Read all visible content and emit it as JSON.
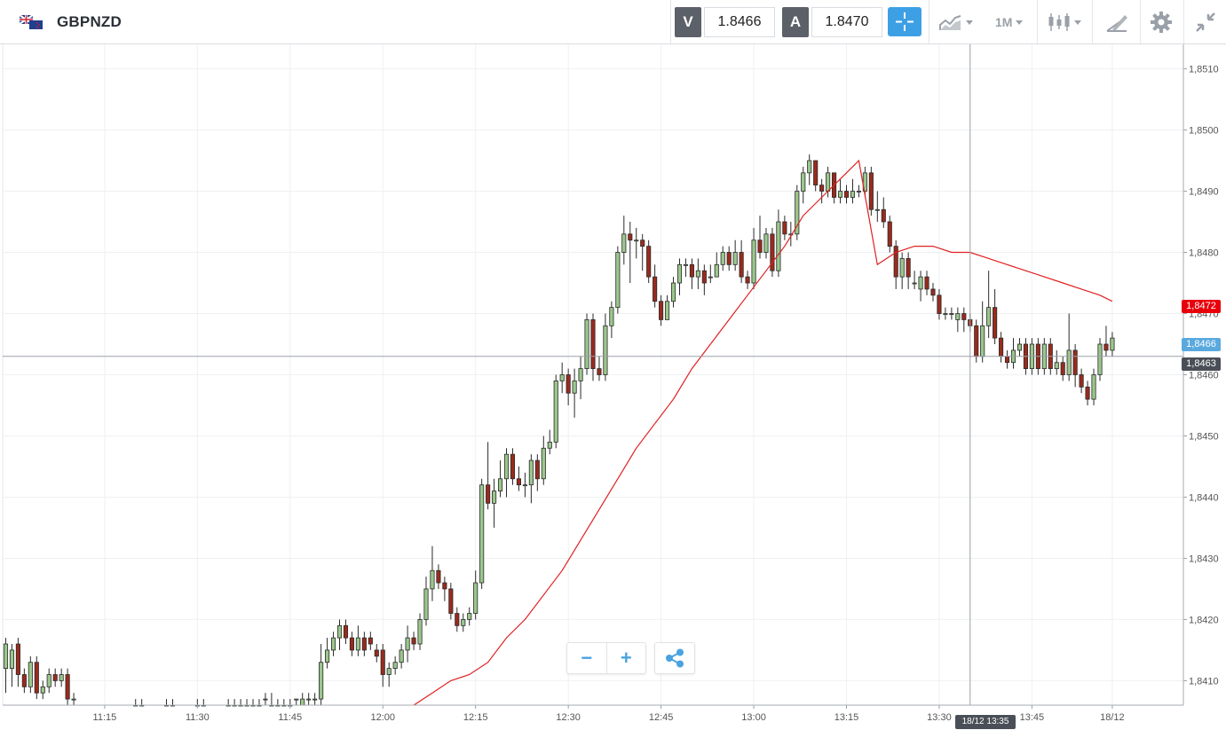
{
  "header": {
    "symbol": "GBPNZD",
    "sell_label": "V",
    "sell_price": "1.8466",
    "buy_label": "A",
    "buy_price": "1.8470",
    "timeframe": "1M"
  },
  "icons": [
    "uk-nz-flag-icon",
    "crosshair-icon",
    "chart-type-icon",
    "candlestick-icon",
    "drawing-tool-icon",
    "gear-icon",
    "collapse-icon",
    "minus-icon",
    "plus-icon",
    "share-icon"
  ],
  "tags": {
    "ma_price": "1,8472",
    "bid_price": "1,8466",
    "cursor_price": "1,8463",
    "cursor_time": "18/12 13:35"
  },
  "colors": {
    "accent": "#3ea0e4",
    "bull": "#9bc78c",
    "bear": "#9a2a1d",
    "ma": "#e02020",
    "ma_tag": "#e8000b",
    "bid_tag": "#5aa9de"
  },
  "chart_data": {
    "type": "candlestick",
    "y_ticks": [
      "1,8410",
      "1,8420",
      "1,8430",
      "1,8440",
      "1,8450",
      "1,8460",
      "1,8470",
      "1,8480",
      "1,8490",
      "1,8500",
      "1,8510"
    ],
    "y_tick_values": [
      1.841,
      1.842,
      1.843,
      1.844,
      1.845,
      1.846,
      1.847,
      1.848,
      1.849,
      1.85,
      1.851
    ],
    "ylim": [
      1.8406,
      1.8514
    ],
    "x_ticks": [
      "11:15",
      "11:30",
      "11:45",
      "12:00",
      "12:15",
      "12:30",
      "12:45",
      "13:00",
      "13:15",
      "13:30",
      "13:45",
      "18/12"
    ],
    "x_tick_minutes": [
      675,
      690,
      705,
      720,
      735,
      750,
      765,
      780,
      795,
      810,
      825,
      838
    ],
    "xlim": [
      658.5,
      849.5
    ],
    "cursor": {
      "minute": 815,
      "price": 1.8463
    },
    "candles": [
      [
        659,
        1.8412,
        1.8416,
        1.8417,
        1.8408
      ],
      [
        660,
        1.8412,
        1.8415,
        1.8416,
        1.8409
      ],
      [
        661,
        1.8416,
        1.8411,
        1.8417,
        1.8409
      ],
      [
        662,
        1.8411,
        1.8409,
        1.8412,
        1.8408
      ],
      [
        663,
        1.8409,
        1.8413,
        1.8414,
        1.8408
      ],
      [
        664,
        1.8413,
        1.8408,
        1.8414,
        1.8407
      ],
      [
        665,
        1.8408,
        1.8409,
        1.841,
        1.8407
      ],
      [
        666,
        1.8409,
        1.8411,
        1.8412,
        1.8408
      ],
      [
        667,
        1.8411,
        1.841,
        1.8412,
        1.8409
      ],
      [
        668,
        1.841,
        1.8411,
        1.8412,
        1.8409
      ],
      [
        669,
        1.8411,
        1.8407,
        1.8412,
        1.8406
      ],
      [
        670,
        1.8407,
        1.8407,
        1.8408,
        1.8406
      ],
      [
        680,
        1.8406,
        1.8406,
        1.8407,
        1.8406
      ],
      [
        681,
        1.8406,
        1.8406,
        1.8407,
        1.8406
      ],
      [
        685,
        1.8406,
        1.8406,
        1.8407,
        1.8406
      ],
      [
        686,
        1.8406,
        1.8406,
        1.8407,
        1.8406
      ],
      [
        690,
        1.8406,
        1.8406,
        1.8407,
        1.8406
      ],
      [
        691,
        1.8406,
        1.8406,
        1.8407,
        1.8406
      ],
      [
        695,
        1.8406,
        1.8406,
        1.8407,
        1.8406
      ],
      [
        696,
        1.8406,
        1.8406,
        1.8407,
        1.8406
      ],
      [
        697,
        1.8406,
        1.8406,
        1.8407,
        1.8406
      ],
      [
        698,
        1.8406,
        1.8406,
        1.8407,
        1.8406
      ],
      [
        699,
        1.8406,
        1.8406,
        1.8407,
        1.8406
      ],
      [
        700,
        1.8406,
        1.8406,
        1.8407,
        1.8406
      ],
      [
        701,
        1.8407,
        1.8407,
        1.8408,
        1.8406
      ],
      [
        702,
        1.8406,
        1.8406,
        1.8408,
        1.8406
      ],
      [
        703,
        1.8406,
        1.8406,
        1.8407,
        1.8406
      ],
      [
        704,
        1.8406,
        1.8406,
        1.8407,
        1.8406
      ],
      [
        705,
        1.8406,
        1.8406,
        1.8407,
        1.8406
      ],
      [
        706,
        1.8407,
        1.8407,
        1.8407,
        1.8406
      ],
      [
        707,
        1.8406,
        1.8407,
        1.8408,
        1.8406
      ],
      [
        708,
        1.8407,
        1.8407,
        1.8408,
        1.8406
      ],
      [
        709,
        1.8407,
        1.8407,
        1.8408,
        1.8406
      ],
      [
        710,
        1.8407,
        1.8413,
        1.8416,
        1.8406
      ],
      [
        711,
        1.8413,
        1.8415,
        1.8417,
        1.8412
      ],
      [
        712,
        1.8415,
        1.8417,
        1.8418,
        1.8414
      ],
      [
        713,
        1.8417,
        1.8419,
        1.842,
        1.8415
      ],
      [
        714,
        1.8419,
        1.8417,
        1.842,
        1.8416
      ],
      [
        715,
        1.8417,
        1.8415,
        1.8418,
        1.8414
      ],
      [
        716,
        1.8415,
        1.8417,
        1.8419,
        1.8414
      ],
      [
        717,
        1.8417,
        1.8415,
        1.8418,
        1.8414
      ],
      [
        718,
        1.8417,
        1.8416,
        1.8418,
        1.8415
      ],
      [
        719,
        1.8415,
        1.8414,
        1.8416,
        1.8413
      ],
      [
        720,
        1.8415,
        1.8411,
        1.8416,
        1.8409
      ],
      [
        721,
        1.8411,
        1.8412,
        1.8413,
        1.8409
      ],
      [
        722,
        1.8412,
        1.8413,
        1.8414,
        1.8411
      ],
      [
        723,
        1.8413,
        1.8415,
        1.8416,
        1.8412
      ],
      [
        724,
        1.8415,
        1.8417,
        1.8419,
        1.8413
      ],
      [
        725,
        1.8417,
        1.8416,
        1.8418,
        1.8415
      ],
      [
        726,
        1.8416,
        1.842,
        1.8421,
        1.8415
      ],
      [
        727,
        1.842,
        1.8425,
        1.8427,
        1.8419
      ],
      [
        728,
        1.8425,
        1.8428,
        1.8432,
        1.8423
      ],
      [
        729,
        1.8428,
        1.8426,
        1.8429,
        1.8425
      ],
      [
        730,
        1.8426,
        1.8425,
        1.8427,
        1.8423
      ],
      [
        731,
        1.8425,
        1.8421,
        1.8426,
        1.842
      ],
      [
        732,
        1.8421,
        1.8419,
        1.8422,
        1.8418
      ],
      [
        733,
        1.8419,
        1.842,
        1.8421,
        1.8418
      ],
      [
        734,
        1.842,
        1.8421,
        1.8422,
        1.8419
      ],
      [
        735,
        1.8421,
        1.8426,
        1.8428,
        1.842
      ],
      [
        736,
        1.8426,
        1.8442,
        1.8443,
        1.8425
      ],
      [
        737,
        1.8442,
        1.8439,
        1.8449,
        1.8438
      ],
      [
        738,
        1.8439,
        1.8441,
        1.8443,
        1.8435
      ],
      [
        739,
        1.8441,
        1.8443,
        1.8446,
        1.844
      ],
      [
        740,
        1.8443,
        1.8447,
        1.8448,
        1.844
      ],
      [
        741,
        1.8447,
        1.8443,
        1.8448,
        1.8442
      ],
      [
        742,
        1.8443,
        1.8442,
        1.8445,
        1.8441
      ],
      [
        743,
        1.8442,
        1.8442,
        1.8444,
        1.844
      ],
      [
        744,
        1.8442,
        1.8446,
        1.8447,
        1.8439
      ],
      [
        745,
        1.8446,
        1.8443,
        1.8447,
        1.8441
      ],
      [
        746,
        1.8443,
        1.8448,
        1.845,
        1.8442
      ],
      [
        747,
        1.8448,
        1.8449,
        1.8451,
        1.8447
      ],
      [
        748,
        1.8449,
        1.8459,
        1.846,
        1.8448
      ],
      [
        749,
        1.8459,
        1.846,
        1.8462,
        1.8457
      ],
      [
        750,
        1.846,
        1.8457,
        1.8461,
        1.8455
      ],
      [
        751,
        1.8457,
        1.8459,
        1.8461,
        1.8453
      ],
      [
        752,
        1.8459,
        1.8461,
        1.8463,
        1.8456
      ],
      [
        753,
        1.8461,
        1.8469,
        1.847,
        1.846
      ],
      [
        754,
        1.8469,
        1.8461,
        1.847,
        1.8459
      ],
      [
        755,
        1.8461,
        1.846,
        1.8463,
        1.8459
      ],
      [
        756,
        1.846,
        1.8468,
        1.847,
        1.8459
      ],
      [
        757,
        1.8468,
        1.8471,
        1.8472,
        1.8466
      ],
      [
        758,
        1.8471,
        1.848,
        1.8481,
        1.847
      ],
      [
        759,
        1.848,
        1.8483,
        1.8486,
        1.8478
      ],
      [
        760,
        1.8483,
        1.8482,
        1.8485,
        1.8475
      ],
      [
        761,
        1.8482,
        1.8482,
        1.8484,
        1.8479
      ],
      [
        762,
        1.8482,
        1.8481,
        1.8483,
        1.8477
      ],
      [
        763,
        1.8481,
        1.8476,
        1.8482,
        1.8475
      ],
      [
        764,
        1.8476,
        1.8472,
        1.8478,
        1.8471
      ],
      [
        765,
        1.8472,
        1.8469,
        1.8473,
        1.8468
      ],
      [
        766,
        1.8469,
        1.8472,
        1.8473,
        1.8469
      ],
      [
        767,
        1.8472,
        1.8475,
        1.8476,
        1.8471
      ],
      [
        768,
        1.8475,
        1.8478,
        1.8479,
        1.8473
      ],
      [
        769,
        1.8478,
        1.8478,
        1.8479,
        1.8476
      ],
      [
        770,
        1.8478,
        1.8476,
        1.8479,
        1.8474
      ],
      [
        771,
        1.8476,
        1.8477,
        1.8479,
        1.8474
      ],
      [
        772,
        1.8477,
        1.8475,
        1.8478,
        1.8473
      ],
      [
        773,
        1.8476,
        1.8476,
        1.8478,
        1.8475
      ],
      [
        774,
        1.8476,
        1.8478,
        1.848,
        1.8476
      ],
      [
        775,
        1.8478,
        1.848,
        1.8481,
        1.8477
      ],
      [
        776,
        1.848,
        1.8478,
        1.8481,
        1.8477
      ],
      [
        777,
        1.8478,
        1.848,
        1.8482,
        1.8477
      ],
      [
        778,
        1.848,
        1.8476,
        1.8482,
        1.8475
      ],
      [
        779,
        1.8476,
        1.8475,
        1.8477,
        1.8474
      ],
      [
        780,
        1.8475,
        1.8482,
        1.8484,
        1.8474
      ],
      [
        781,
        1.8482,
        1.848,
        1.8486,
        1.8479
      ],
      [
        782,
        1.848,
        1.8483,
        1.8484,
        1.8479
      ],
      [
        783,
        1.8483,
        1.8477,
        1.8484,
        1.8476
      ],
      [
        784,
        1.8477,
        1.8485,
        1.8487,
        1.8476
      ],
      [
        785,
        1.8485,
        1.8483,
        1.8486,
        1.8482
      ],
      [
        786,
        1.8483,
        1.8483,
        1.8485,
        1.8481
      ],
      [
        787,
        1.8483,
        1.849,
        1.8491,
        1.8482
      ],
      [
        788,
        1.849,
        1.8493,
        1.8494,
        1.8488
      ],
      [
        789,
        1.8493,
        1.8495,
        1.8496,
        1.8491
      ],
      [
        790,
        1.8495,
        1.8491,
        1.8495,
        1.849
      ],
      [
        791,
        1.8491,
        1.849,
        1.8492,
        1.8488
      ],
      [
        792,
        1.849,
        1.8493,
        1.8494,
        1.8489
      ],
      [
        793,
        1.8493,
        1.8489,
        1.8493,
        1.8488
      ],
      [
        794,
        1.8489,
        1.849,
        1.8492,
        1.8488
      ],
      [
        795,
        1.849,
        1.8489,
        1.8491,
        1.8488
      ],
      [
        796,
        1.8489,
        1.849,
        1.8492,
        1.8488
      ],
      [
        797,
        1.849,
        1.849,
        1.8491,
        1.8489
      ],
      [
        798,
        1.849,
        1.8493,
        1.8494,
        1.8489
      ],
      [
        799,
        1.8493,
        1.8487,
        1.8494,
        1.8486
      ],
      [
        800,
        1.8487,
        1.8487,
        1.849,
        1.8485
      ],
      [
        801,
        1.8487,
        1.8485,
        1.8489,
        1.8484
      ],
      [
        802,
        1.8485,
        1.8481,
        1.8486,
        1.848
      ],
      [
        803,
        1.8481,
        1.8476,
        1.8482,
        1.8474
      ],
      [
        804,
        1.8476,
        1.8479,
        1.848,
        1.8474
      ],
      [
        805,
        1.8479,
        1.8476,
        1.848,
        1.8474
      ],
      [
        806,
        1.8475,
        1.8475,
        1.8477,
        1.8474
      ],
      [
        807,
        1.8474,
        1.8476,
        1.8477,
        1.8472
      ],
      [
        808,
        1.8476,
        1.8474,
        1.8477,
        1.8473
      ],
      [
        809,
        1.8474,
        1.8473,
        1.8475,
        1.8472
      ],
      [
        810,
        1.8473,
        1.847,
        1.8474,
        1.8469
      ],
      [
        811,
        1.847,
        1.847,
        1.8471,
        1.8469
      ],
      [
        812,
        1.847,
        1.847,
        1.8471,
        1.8469
      ],
      [
        813,
        1.8469,
        1.847,
        1.8471,
        1.8467
      ],
      [
        814,
        1.847,
        1.8469,
        1.8471,
        1.8467
      ],
      [
        815,
        1.8469,
        1.8468,
        1.847,
        1.8467
      ],
      [
        816,
        1.8468,
        1.8463,
        1.8469,
        1.8462
      ],
      [
        817,
        1.8463,
        1.8468,
        1.8472,
        1.8462
      ],
      [
        818,
        1.8468,
        1.8471,
        1.8477,
        1.8466
      ],
      [
        819,
        1.8471,
        1.8466,
        1.8474,
        1.8465
      ],
      [
        820,
        1.8466,
        1.8463,
        1.8467,
        1.8462
      ],
      [
        821,
        1.8463,
        1.8462,
        1.8464,
        1.8461
      ],
      [
        822,
        1.8462,
        1.8464,
        1.8466,
        1.8461
      ],
      [
        823,
        1.8464,
        1.8465,
        1.8466,
        1.8463
      ],
      [
        824,
        1.8465,
        1.8461,
        1.8466,
        1.846
      ],
      [
        825,
        1.8461,
        1.8465,
        1.8466,
        1.846
      ],
      [
        826,
        1.8465,
        1.8461,
        1.8466,
        1.846
      ],
      [
        827,
        1.8461,
        1.8465,
        1.8466,
        1.846
      ],
      [
        828,
        1.8465,
        1.8461,
        1.8466,
        1.846
      ],
      [
        829,
        1.8461,
        1.8462,
        1.8464,
        1.846
      ],
      [
        830,
        1.8462,
        1.846,
        1.8463,
        1.8459
      ],
      [
        831,
        1.846,
        1.8464,
        1.847,
        1.8459
      ],
      [
        832,
        1.8464,
        1.846,
        1.8465,
        1.8458
      ],
      [
        833,
        1.846,
        1.8458,
        1.8461,
        1.8457
      ],
      [
        834,
        1.8458,
        1.8456,
        1.8459,
        1.8455
      ],
      [
        835,
        1.8456,
        1.846,
        1.8461,
        1.8455
      ],
      [
        836,
        1.846,
        1.8465,
        1.8466,
        1.8459
      ],
      [
        837,
        1.8465,
        1.8464,
        1.8468,
        1.8463
      ],
      [
        838,
        1.8464,
        1.8466,
        1.8467,
        1.8463
      ]
    ],
    "ma": [
      [
        725,
        1.8406
      ],
      [
        728,
        1.8408
      ],
      [
        731,
        1.841
      ],
      [
        734,
        1.8411
      ],
      [
        737,
        1.8413
      ],
      [
        740,
        1.8417
      ],
      [
        743,
        1.842
      ],
      [
        746,
        1.8424
      ],
      [
        749,
        1.8428
      ],
      [
        752,
        1.8433
      ],
      [
        755,
        1.8438
      ],
      [
        758,
        1.8443
      ],
      [
        761,
        1.8448
      ],
      [
        764,
        1.8452
      ],
      [
        767,
        1.8456
      ],
      [
        770,
        1.8461
      ],
      [
        773,
        1.8465
      ],
      [
        776,
        1.8469
      ],
      [
        779,
        1.8473
      ],
      [
        782,
        1.8477
      ],
      [
        785,
        1.8481
      ],
      [
        788,
        1.8486
      ],
      [
        791,
        1.8489
      ],
      [
        794,
        1.8492
      ],
      [
        797,
        1.8495
      ],
      [
        800,
        1.8478
      ],
      [
        803,
        1.848
      ],
      [
        806,
        1.8481
      ],
      [
        809,
        1.8481
      ],
      [
        812,
        1.848
      ],
      [
        815,
        1.848
      ],
      [
        818,
        1.8479
      ],
      [
        821,
        1.8478
      ],
      [
        824,
        1.8477
      ],
      [
        827,
        1.8476
      ],
      [
        830,
        1.8475
      ],
      [
        833,
        1.8474
      ],
      [
        836,
        1.8473
      ],
      [
        838,
        1.8472
      ]
    ]
  }
}
